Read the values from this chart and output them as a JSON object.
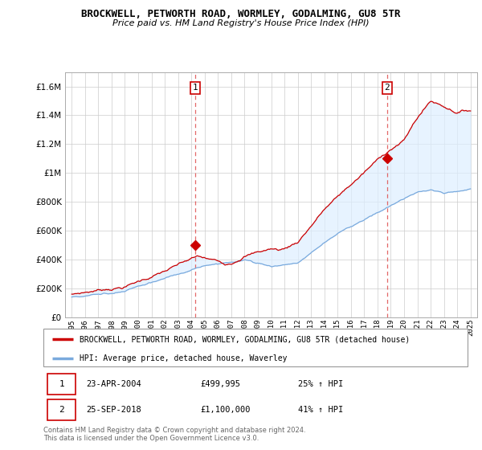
{
  "title": "BROCKWELL, PETWORTH ROAD, WORMLEY, GODALMING, GU8 5TR",
  "subtitle": "Price paid vs. HM Land Registry's House Price Index (HPI)",
  "ylabel_values": [
    0,
    200000,
    400000,
    600000,
    800000,
    1000000,
    1200000,
    1400000,
    1600000
  ],
  "ylim": [
    0,
    1700000
  ],
  "xlim_start": 1994.5,
  "xlim_end": 2025.5,
  "hpi_color": "#7aaadd",
  "price_color": "#cc0000",
  "fill_color": "#ddeeff",
  "marker1_x": 2004.31,
  "marker1_y": 499995,
  "marker2_x": 2018.73,
  "marker2_y": 1100000,
  "annotation1_date": "23-APR-2004",
  "annotation1_price": "£499,995",
  "annotation1_hpi": "25% ↑ HPI",
  "annotation2_date": "25-SEP-2018",
  "annotation2_price": "£1,100,000",
  "annotation2_hpi": "41% ↑ HPI",
  "legend_label_price": "BROCKWELL, PETWORTH ROAD, WORMLEY, GODALMING, GU8 5TR (detached house)",
  "legend_label_hpi": "HPI: Average price, detached house, Waverley",
  "footer": "Contains HM Land Registry data © Crown copyright and database right 2024.\nThis data is licensed under the Open Government Licence v3.0.",
  "xtick_years": [
    1995,
    1996,
    1997,
    1998,
    1999,
    2000,
    2001,
    2002,
    2003,
    2004,
    2005,
    2006,
    2007,
    2008,
    2009,
    2010,
    2011,
    2012,
    2013,
    2014,
    2015,
    2016,
    2017,
    2018,
    2019,
    2020,
    2021,
    2022,
    2023,
    2024,
    2025
  ],
  "vline1_x": 2004.31,
  "vline2_x": 2018.73
}
